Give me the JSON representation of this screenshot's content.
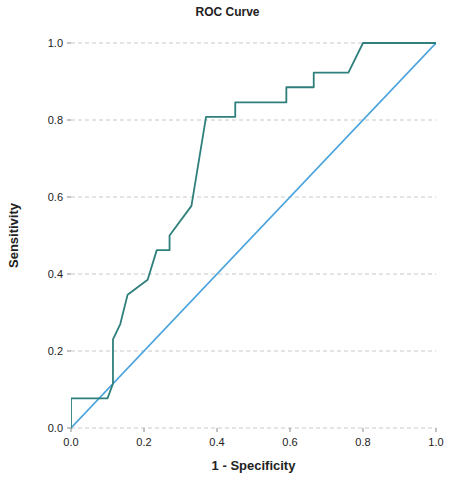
{
  "chart_data": {
    "type": "line",
    "title": "ROC Curve",
    "x_label": "1 - Specificity",
    "y_label": "Sensitivity",
    "xlim": [
      0,
      1
    ],
    "ylim": [
      0,
      1
    ],
    "xticks": [
      {
        "value": 0,
        "label": "0.0"
      },
      0.2,
      0.4,
      0.6,
      0.8,
      {
        "value": 1,
        "label": "1.0"
      }
    ],
    "yticks": [
      {
        "value": 0,
        "label": "0.0"
      },
      0.2,
      0.4,
      0.6,
      0.8,
      {
        "value": 1,
        "label": "1.0"
      }
    ],
    "grid": true,
    "series": [
      {
        "color": "#2f7f7c",
        "x": [
          0,
          0,
          0.1,
          0.115,
          0.115,
          0.135,
          0.155,
          0.21,
          0.235,
          0.27,
          0.27,
          0.33,
          0.37,
          0.45,
          0.45,
          0.59,
          0.59,
          0.665,
          0.665,
          0.76,
          0.8,
          1.0
        ],
        "values": [
          0,
          0.077,
          0.077,
          0.115,
          0.23,
          0.27,
          0.346,
          0.385,
          0.462,
          0.462,
          0.5,
          0.577,
          0.808,
          0.808,
          0.846,
          0.846,
          0.885,
          0.885,
          0.923,
          0.923,
          1.0,
          1.0
        ]
      },
      {
        "color": "#4aa3dc",
        "x": [
          0,
          1
        ],
        "values": [
          0,
          1
        ]
      }
    ]
  }
}
